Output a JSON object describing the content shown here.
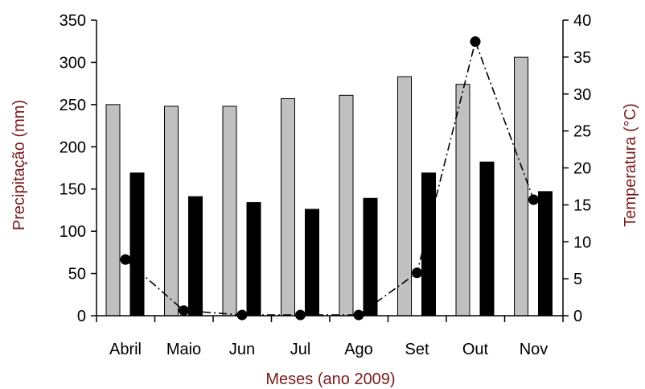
{
  "chart_data": {
    "type": "bar",
    "categories": [
      "Abril",
      "Maio",
      "Jun",
      "Jul",
      "Ago",
      "Set",
      "Out",
      "Nov"
    ],
    "xlabel": "Meses (ano 2009)",
    "ylabel": "Precipitação (mm)",
    "y2label": "Temperatura  (°C)",
    "ylim": [
      0,
      350
    ],
    "y2lim": [
      0,
      40
    ],
    "yticks": [
      0,
      50,
      100,
      150,
      200,
      250,
      300,
      350
    ],
    "y2ticks": [
      0,
      5,
      10,
      15,
      20,
      25,
      30,
      35,
      40
    ],
    "grid": false,
    "series": [
      {
        "kind": "bar",
        "axis": "left",
        "color": "#c0c0c0",
        "values": [
          250,
          248,
          248,
          257,
          261,
          283,
          274,
          306
        ]
      },
      {
        "kind": "bar",
        "axis": "left",
        "color": "#000000",
        "values": [
          169,
          141,
          134,
          126,
          139,
          169,
          182,
          147
        ]
      },
      {
        "kind": "line",
        "axis": "right",
        "color": "#000000",
        "line_style": "dash-dot",
        "marker": "circle",
        "values": [
          7.6,
          0.7,
          0.1,
          0.1,
          0.1,
          5.8,
          37.1,
          15.7
        ]
      }
    ]
  }
}
